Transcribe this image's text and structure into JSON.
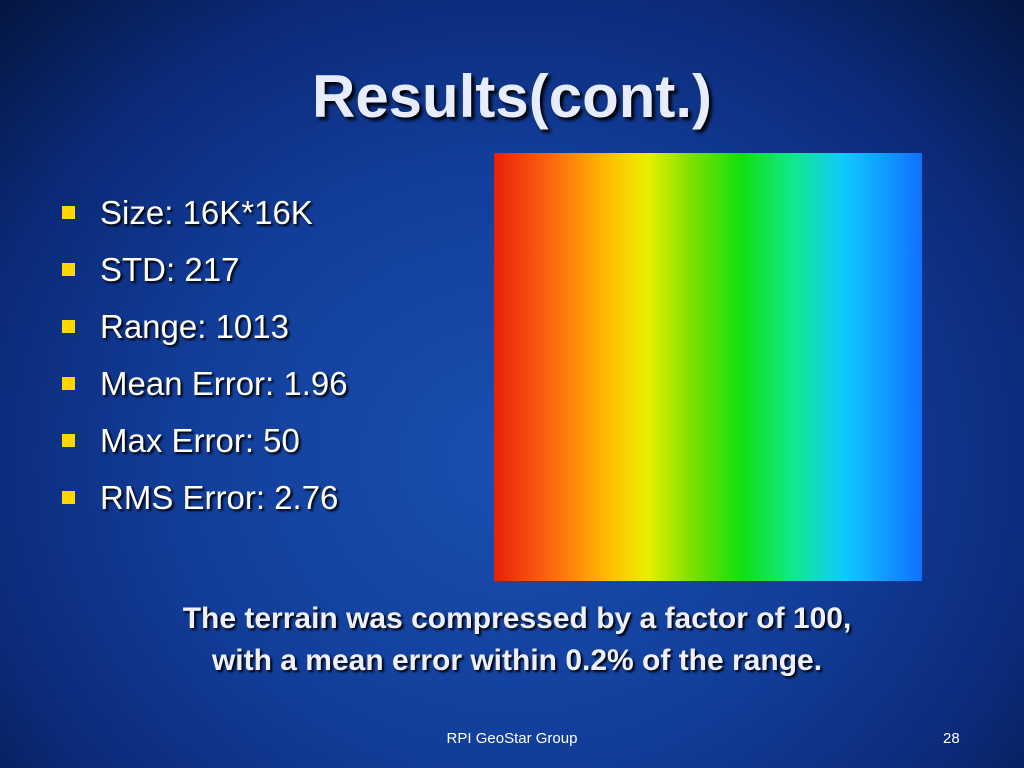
{
  "slide": {
    "title": "Results(cont.)",
    "bullets": [
      "Size: 16K*16K",
      "STD: 217",
      "Range: 1013",
      "Mean Error: 1.96",
      "Max Error: 50",
      "RMS Error: 2.76"
    ],
    "summary": [
      "The terrain was compressed by a factor of 100,",
      "with a mean error within 0.2% of the range."
    ],
    "footer": "RPI GeoStar Group",
    "page_number": "28"
  }
}
